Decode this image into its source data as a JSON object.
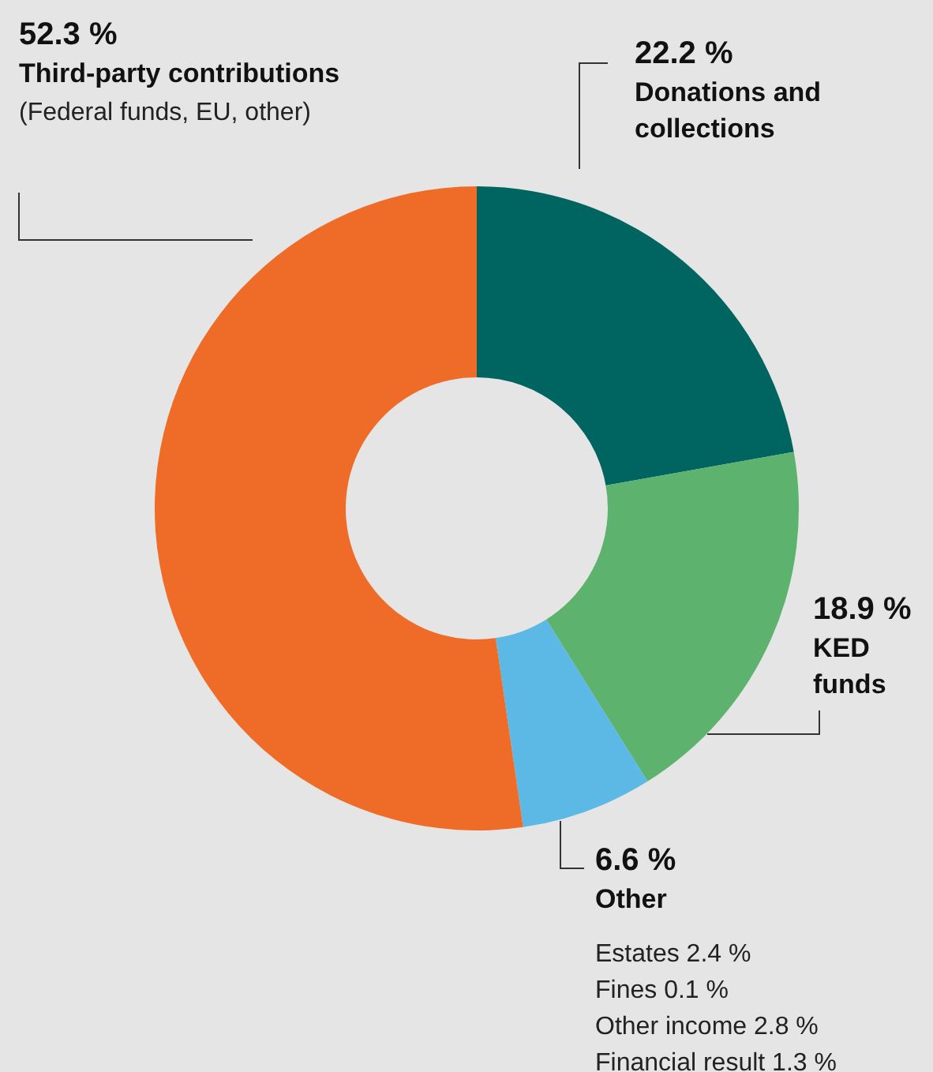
{
  "chart_data": {
    "type": "donut",
    "categories": [
      "Donations and collections",
      "KED funds",
      "Other",
      "Third-party contributions"
    ],
    "values": [
      22.2,
      18.9,
      6.6,
      52.3
    ],
    "colors": [
      "#006560",
      "#5db26e",
      "#5cb8e4",
      "#ef6c28"
    ],
    "value_labels": [
      "22.2 %",
      "18.9 %",
      "6.6 %",
      "52.3 %"
    ],
    "annotations": [
      {
        "text": "(Federal funds, EU, other)",
        "x": "Third-party contributions"
      },
      {
        "text": "Estates 2.4 %",
        "x": "Other"
      },
      {
        "text": "Fines 0.1 %",
        "x": "Other"
      },
      {
        "text": "Other income 2.8 %",
        "x": "Other"
      },
      {
        "text": "Financial result 1.3 %",
        "x": "Other"
      }
    ],
    "legend": false
  }
}
